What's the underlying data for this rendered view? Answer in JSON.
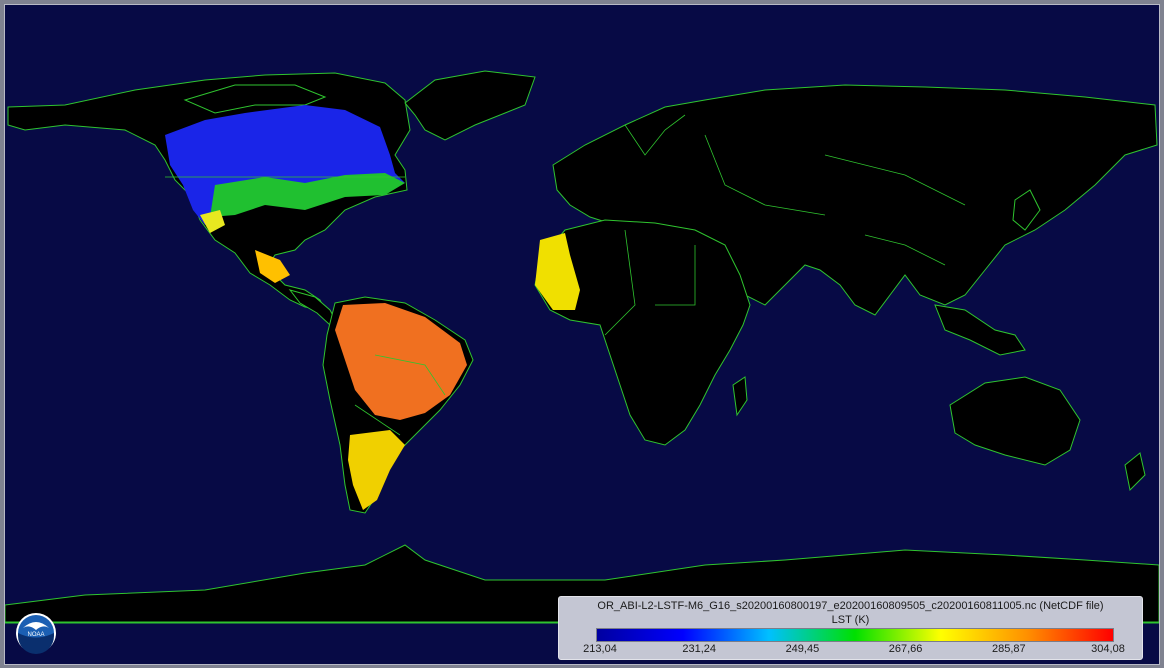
{
  "map": {
    "background_color": "#070a45",
    "coastline_color": "#2fc42f",
    "land_color": "#000000"
  },
  "legend": {
    "filename": "OR_ABI-L2-LSTF-M6_G16_s20200160800197_e20200160809505_c20200160811005.nc (NetCDF file)",
    "variable": "LST (K)",
    "colormap": [
      "#0000a0",
      "#0000ff",
      "#00c0ff",
      "#00e000",
      "#ffff00",
      "#ff9000",
      "#ff0000"
    ],
    "ticks": [
      "213,04",
      "231,24",
      "249,45",
      "267,66",
      "285,87",
      "304,08"
    ],
    "min": 213.04,
    "max": 304.08
  },
  "logo": {
    "name": "noaa-logo",
    "text": "NOAA"
  }
}
